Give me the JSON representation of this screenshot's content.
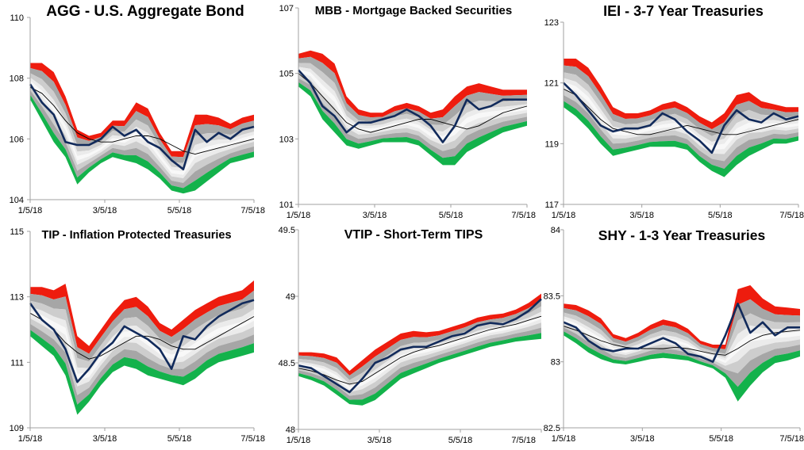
{
  "chart_data": [
    {
      "type": "area",
      "title": "AGG - U.S. Aggregate Bond",
      "ylim": [
        104,
        110
      ],
      "yticks": [
        "104",
        "106",
        "108",
        "110"
      ],
      "xticks": [
        "1/5/18",
        "3/5/18",
        "5/5/18",
        "7/5/18"
      ],
      "mid": [
        107.7,
        107.5,
        107.1,
        106.6,
        106.2,
        106.0,
        105.9,
        105.9,
        106.0,
        106.1,
        106.1,
        106.0,
        105.8,
        105.6,
        105.5,
        105.6,
        105.7,
        105.8,
        105.9,
        106.0
      ],
      "price": [
        107.8,
        107.2,
        106.8,
        105.9,
        105.8,
        105.8,
        106.0,
        106.4,
        106.1,
        106.3,
        105.9,
        105.7,
        105.3,
        105.0,
        106.3,
        105.9,
        106.2,
        106.0,
        106.3,
        106.4
      ],
      "upper": [
        108.5,
        108.5,
        108.2,
        107.4,
        106.3,
        106.1,
        106.2,
        106.6,
        106.6,
        107.2,
        107.0,
        106.2,
        105.6,
        105.6,
        106.8,
        106.8,
        106.7,
        106.5,
        106.7,
        106.8
      ],
      "lower": [
        107.3,
        106.6,
        105.9,
        105.4,
        104.5,
        104.9,
        105.2,
        105.4,
        105.3,
        105.2,
        105.0,
        104.7,
        104.3,
        104.2,
        104.3,
        104.6,
        104.9,
        105.2,
        105.3,
        105.4
      ]
    },
    {
      "type": "area",
      "title": "MBB - Mortgage Backed Securities",
      "ylim": [
        101,
        107
      ],
      "yticks": [
        "101",
        "103",
        "105",
        "107"
      ],
      "xticks": [
        "1/5/18",
        "3/5/18",
        "5/5/18",
        "7/5/18"
      ],
      "mid": [
        105.0,
        104.7,
        104.3,
        103.9,
        103.5,
        103.3,
        103.2,
        103.3,
        103.4,
        103.5,
        103.6,
        103.6,
        103.5,
        103.4,
        103.3,
        103.4,
        103.6,
        103.8,
        103.9,
        104.0
      ],
      "price": [
        105.1,
        104.7,
        104.0,
        103.7,
        103.2,
        103.5,
        103.5,
        103.6,
        103.7,
        103.9,
        103.7,
        103.4,
        102.9,
        103.4,
        104.2,
        103.9,
        104.0,
        104.2,
        104.2,
        104.2
      ],
      "upper": [
        105.6,
        105.7,
        105.6,
        105.3,
        104.3,
        103.9,
        103.8,
        103.8,
        104.0,
        104.1,
        104.0,
        103.8,
        103.9,
        104.3,
        104.6,
        104.7,
        104.6,
        104.5,
        104.5,
        104.5
      ],
      "lower": [
        104.6,
        104.3,
        103.6,
        103.2,
        102.8,
        102.7,
        102.8,
        102.9,
        102.9,
        102.9,
        102.8,
        102.5,
        102.2,
        102.2,
        102.6,
        102.8,
        103.0,
        103.2,
        103.3,
        103.4
      ]
    },
    {
      "type": "area",
      "title": "IEI - 3-7 Year Treasuries",
      "ylim": [
        117,
        123
      ],
      "yticks": [
        "117",
        "119",
        "121",
        "123"
      ],
      "xticks": [
        "1/5/18",
        "3/5/18",
        "5/5/18",
        "7/5/18"
      ],
      "mid": [
        120.8,
        120.6,
        120.2,
        119.8,
        119.5,
        119.4,
        119.3,
        119.3,
        119.4,
        119.5,
        119.6,
        119.5,
        119.4,
        119.3,
        119.3,
        119.4,
        119.5,
        119.6,
        119.7,
        119.8
      ],
      "price": [
        121.0,
        120.6,
        120.1,
        119.6,
        119.4,
        119.5,
        119.5,
        119.6,
        120.0,
        119.8,
        119.4,
        119.1,
        118.7,
        119.6,
        120.1,
        119.8,
        119.7,
        120.0,
        119.8,
        119.9
      ],
      "upper": [
        121.8,
        121.8,
        121.5,
        120.9,
        120.2,
        120.0,
        120.0,
        120.1,
        120.3,
        120.4,
        120.2,
        119.9,
        119.7,
        120.0,
        120.6,
        120.7,
        120.4,
        120.3,
        120.2,
        120.2
      ],
      "lower": [
        120.2,
        119.9,
        119.5,
        119.0,
        118.6,
        118.7,
        118.8,
        118.9,
        118.9,
        118.9,
        118.8,
        118.4,
        118.1,
        117.9,
        118.3,
        118.6,
        118.8,
        119.0,
        119.0,
        119.1
      ]
    },
    {
      "type": "area",
      "title": "TIP - Inflation Protected Treasuries",
      "ylim": [
        109,
        115
      ],
      "yticks": [
        "109",
        "111",
        "113",
        "115"
      ],
      "xticks": [
        "1/5/18",
        "3/5/18",
        "5/5/18",
        "7/5/18"
      ],
      "mid": [
        112.5,
        112.3,
        112.0,
        111.6,
        111.3,
        111.1,
        111.2,
        111.4,
        111.6,
        111.8,
        111.8,
        111.7,
        111.5,
        111.4,
        111.4,
        111.6,
        111.8,
        112.0,
        112.2,
        112.4
      ],
      "price": [
        112.8,
        112.3,
        112.0,
        111.4,
        110.4,
        110.8,
        111.3,
        111.6,
        112.1,
        111.9,
        111.7,
        111.4,
        110.8,
        111.8,
        111.7,
        112.1,
        112.4,
        112.6,
        112.8,
        112.9
      ],
      "upper": [
        113.3,
        113.3,
        113.2,
        113.4,
        111.8,
        111.5,
        112.0,
        112.5,
        112.9,
        113.0,
        112.7,
        112.2,
        112.0,
        112.3,
        112.6,
        112.8,
        113.0,
        113.1,
        113.2,
        113.5
      ],
      "lower": [
        111.8,
        111.5,
        111.2,
        110.6,
        109.4,
        109.8,
        110.3,
        110.7,
        110.9,
        110.8,
        110.6,
        110.5,
        110.4,
        110.3,
        110.5,
        110.8,
        111.0,
        111.1,
        111.2,
        111.3
      ]
    },
    {
      "type": "area",
      "title": "VTIP - Short-Term TIPS",
      "ylim": [
        48,
        49.5
      ],
      "yticks": [
        "48",
        "48.5",
        "49",
        "49.5"
      ],
      "xticks": [
        "1/5/18",
        "3/5/18",
        "5/5/18",
        "7/5/18"
      ],
      "mid": [
        48.46,
        48.44,
        48.41,
        48.37,
        48.34,
        48.36,
        48.42,
        48.48,
        48.54,
        48.58,
        48.61,
        48.63,
        48.66,
        48.69,
        48.72,
        48.75,
        48.77,
        48.79,
        48.82,
        48.85
      ],
      "price": [
        48.48,
        48.46,
        48.4,
        48.34,
        48.28,
        48.38,
        48.5,
        48.54,
        48.6,
        48.62,
        48.62,
        48.66,
        48.7,
        48.72,
        48.78,
        48.8,
        48.79,
        48.83,
        48.89,
        48.98
      ],
      "upper": [
        48.58,
        48.58,
        48.57,
        48.54,
        48.44,
        48.52,
        48.6,
        48.66,
        48.72,
        48.74,
        48.73,
        48.74,
        48.77,
        48.8,
        48.84,
        48.86,
        48.87,
        48.9,
        48.95,
        49.02
      ],
      "lower": [
        48.4,
        48.37,
        48.33,
        48.26,
        48.19,
        48.18,
        48.22,
        48.3,
        48.38,
        48.42,
        48.46,
        48.5,
        48.53,
        48.56,
        48.59,
        48.62,
        48.64,
        48.66,
        48.67,
        48.68
      ]
    },
    {
      "type": "area",
      "title": "SHY - 1-3 Year Treasuries",
      "ylim": [
        82.5,
        84
      ],
      "yticks": [
        "82.5",
        "83",
        "83.5",
        "84"
      ],
      "xticks": [
        "1/5/18",
        "3/5/18",
        "5/5/18",
        "7/5/18"
      ],
      "mid": [
        83.27,
        83.24,
        83.2,
        83.16,
        83.13,
        83.11,
        83.1,
        83.1,
        83.1,
        83.11,
        83.1,
        83.08,
        83.06,
        83.05,
        83.1,
        83.16,
        83.2,
        83.22,
        83.23,
        83.24
      ],
      "price": [
        83.3,
        83.26,
        83.16,
        83.1,
        83.08,
        83.1,
        83.1,
        83.14,
        83.18,
        83.14,
        83.06,
        83.04,
        83.0,
        83.2,
        83.44,
        83.22,
        83.3,
        83.2,
        83.26,
        83.26
      ],
      "upper": [
        83.44,
        83.43,
        83.39,
        83.33,
        83.21,
        83.18,
        83.22,
        83.28,
        83.32,
        83.3,
        83.25,
        83.16,
        83.13,
        83.13,
        83.55,
        83.58,
        83.48,
        83.42,
        83.41,
        83.4
      ],
      "lower": [
        83.2,
        83.14,
        83.07,
        83.02,
        82.99,
        82.98,
        83.0,
        83.02,
        83.03,
        83.02,
        83.01,
        82.98,
        82.95,
        82.88,
        82.7,
        82.82,
        82.92,
        82.99,
        83.01,
        83.04
      ]
    }
  ],
  "style": {
    "red": "#ee1c0e",
    "green": "#13b24b",
    "gray_dark": "#a6a6a6",
    "gray_mid": "#cdcdcd",
    "gray_light": "#ebebeb",
    "white_core": "#f8f8f8",
    "price_line": "#112a5b",
    "mid_line": "#000000",
    "axis": "#a0a0a0"
  }
}
